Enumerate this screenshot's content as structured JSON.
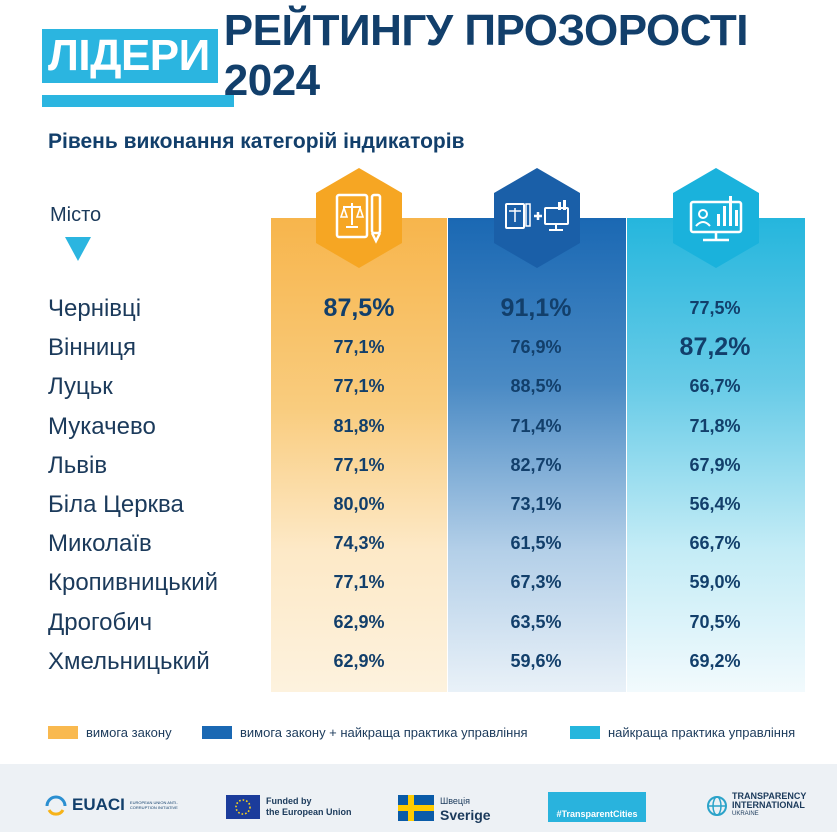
{
  "title": {
    "highlight": "ЛІДЕРИ",
    "rest": "РЕЙТИНГУ ПРОЗОРОСТІ 2024"
  },
  "subtitle": "Рівень виконання категорій індикаторів",
  "city_header": "Місто",
  "colors": {
    "law": "#f6a623",
    "law_practice": "#1a5fa8",
    "practice": "#1ab2dc",
    "title_blue": "#2bb5e0",
    "dark_text": "#123f6b"
  },
  "icons": [
    "law-document-icon",
    "law-plus-monitor-icon",
    "monitor-chart-icon"
  ],
  "chart_data": {
    "type": "table",
    "series": [
      {
        "name": "вимога закону",
        "values": [
          87.5,
          77.1,
          77.1,
          81.8,
          77.1,
          80.0,
          74.3,
          77.1,
          62.9,
          62.9
        ]
      },
      {
        "name": "вимога закону + найкраща практика управління",
        "values": [
          91.1,
          76.9,
          88.5,
          71.4,
          82.7,
          73.1,
          61.5,
          67.3,
          63.5,
          59.6
        ]
      },
      {
        "name": "найкраща практика управління",
        "values": [
          77.5,
          87.2,
          66.7,
          71.8,
          67.9,
          56.4,
          66.7,
          59.0,
          70.5,
          69.2
        ]
      }
    ],
    "categories": [
      "Чернівці",
      "Вінниця",
      "Луцьк",
      "Мукачево",
      "Львів",
      "Біла Церква",
      "Миколаїв",
      "Кропивницький",
      "Дрогобич",
      "Хмельницький"
    ]
  },
  "rows": [
    {
      "city": "Чернівці",
      "a": "87,5%",
      "b": "91,1%",
      "c": "77,5%",
      "big": [
        "a",
        "b"
      ]
    },
    {
      "city": "Вінниця",
      "a": "77,1%",
      "b": "76,9%",
      "c": "87,2%",
      "big": [
        "c"
      ]
    },
    {
      "city": "Луцьк",
      "a": "77,1%",
      "b": "88,5%",
      "c": "66,7%",
      "big": []
    },
    {
      "city": "Мукачево",
      "a": "81,8%",
      "b": "71,4%",
      "c": "71,8%",
      "big": []
    },
    {
      "city": "Львів",
      "a": "77,1%",
      "b": "82,7%",
      "c": "67,9%",
      "big": []
    },
    {
      "city": "Біла Церква",
      "a": "80,0%",
      "b": "73,1%",
      "c": "56,4%",
      "big": []
    },
    {
      "city": "Миколаїв",
      "a": "74,3%",
      "b": "61,5%",
      "c": "66,7%",
      "big": []
    },
    {
      "city": "Кропивницький",
      "a": "77,1%",
      "b": "67,3%",
      "c": "59,0%",
      "big": []
    },
    {
      "city": "Дрогобич",
      "a": "62,9%",
      "b": "63,5%",
      "c": "70,5%",
      "big": []
    },
    {
      "city": "Хмельницький",
      "a": "62,9%",
      "b": "59,6%",
      "c": "69,2%",
      "big": []
    }
  ],
  "legend": [
    "вимога закону",
    "вимога закону + найкраща практика управління",
    "найкраща практика управління"
  ],
  "footer": {
    "euaci": "EUACI",
    "euaci_small": "EUROPEAN UNION ANTI-CORRUPTION INITIATIVE",
    "eu_line1": "Funded by",
    "eu_line2": "the European Union",
    "sweden_line1": "Швеція",
    "sweden_line2": "Sverige",
    "tc": "#TransparentCities",
    "ti_line1": "TRANSPARENCY",
    "ti_line2": "INTERNATIONAL",
    "ti_line3": "UKRAINE"
  }
}
